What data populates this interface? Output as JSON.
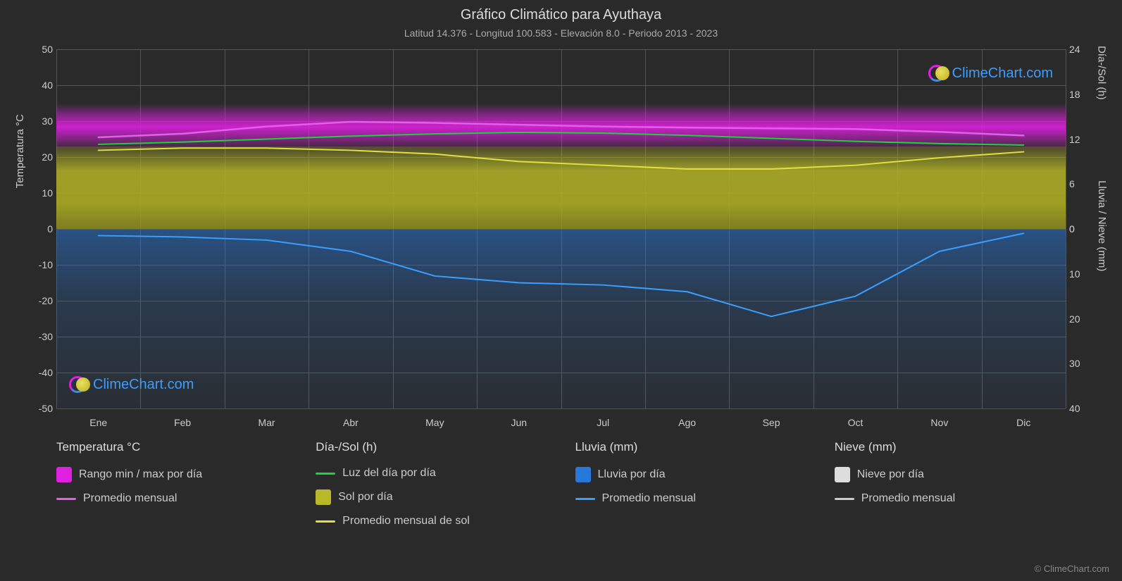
{
  "title": "Gráfico Climático para Ayuthaya",
  "subtitle": "Latitud 14.376 - Longitud 100.583 - Elevación 8.0 - Periodo 2013 - 2023",
  "logo_text": "ClimeChart.com",
  "copyright": "© ClimeChart.com",
  "axes": {
    "left_label": "Temperatura °C",
    "right_top_label": "Día-/Sol (h)",
    "right_bot_label": "Lluvia / Nieve (mm)",
    "y_left": {
      "min": -50,
      "max": 50,
      "step": 10,
      "ticks": [
        50,
        40,
        30,
        20,
        10,
        0,
        -10,
        -20,
        -30,
        -40,
        -50
      ]
    },
    "y_right_top": {
      "min": 0,
      "max": 24,
      "step": 6,
      "ticks": [
        24,
        18,
        12,
        6,
        0
      ]
    },
    "y_right_bot": {
      "min": 0,
      "max": 40,
      "step": 10,
      "ticks": [
        0,
        10,
        20,
        30,
        40
      ]
    },
    "months": [
      "Ene",
      "Feb",
      "Mar",
      "Abr",
      "May",
      "Jun",
      "Jul",
      "Ago",
      "Sep",
      "Oct",
      "Nov",
      "Dic"
    ]
  },
  "colors": {
    "background": "#2a2a2a",
    "grid": "#555555",
    "text": "#cccccc",
    "temp_range": "#e020e0",
    "temp_avg": "#e060e8",
    "daylight": "#20d040",
    "sun_band": "#b8b828",
    "sun_avg": "#e0e040",
    "rain_band": "#2878dc",
    "rain_avg": "#3a9eff",
    "snow_band": "#dddddd",
    "snow_avg": "#cccccc",
    "logo_blue": "#3a9eff"
  },
  "series": {
    "temp_avg_c": [
      25.5,
      26.5,
      28.5,
      29.8,
      29.5,
      29.0,
      28.5,
      28.2,
      28.0,
      27.8,
      27.0,
      26.0
    ],
    "temp_band_top_c": 35,
    "temp_band_bot_c": 22,
    "daylight_h": [
      11.3,
      11.6,
      12.0,
      12.4,
      12.7,
      12.9,
      12.8,
      12.5,
      12.1,
      11.7,
      11.4,
      11.2
    ],
    "sun_avg_h": [
      10.5,
      10.8,
      10.8,
      10.5,
      10.0,
      9.0,
      8.5,
      8.0,
      8.0,
      8.5,
      9.5,
      10.3
    ],
    "sun_band_top_h": 11,
    "sun_band_bot_h": 0,
    "rain_avg_mm": [
      1.5,
      1.8,
      2.5,
      5.0,
      10.5,
      12.0,
      12.5,
      14.0,
      19.5,
      15.0,
      5.0,
      1.0
    ],
    "rain_band_depth_mm": 40
  },
  "legend": {
    "cols": [
      {
        "title": "Temperatura °C",
        "items": [
          {
            "kind": "swatch",
            "color": "#e020e0",
            "label": "Rango min / max por día"
          },
          {
            "kind": "line",
            "color": "#e060e8",
            "label": "Promedio mensual"
          }
        ]
      },
      {
        "title": "Día-/Sol (h)",
        "items": [
          {
            "kind": "line",
            "color": "#20d040",
            "label": "Luz del día por día"
          },
          {
            "kind": "swatch",
            "color": "#b8b828",
            "label": "Sol por día"
          },
          {
            "kind": "line",
            "color": "#e0e040",
            "label": "Promedio mensual de sol"
          }
        ]
      },
      {
        "title": "Lluvia (mm)",
        "items": [
          {
            "kind": "swatch",
            "color": "#2878dc",
            "label": "Lluvia por día"
          },
          {
            "kind": "line",
            "color": "#3a9eff",
            "label": "Promedio mensual"
          }
        ]
      },
      {
        "title": "Nieve (mm)",
        "items": [
          {
            "kind": "swatch",
            "color": "#dddddd",
            "label": "Nieve por día"
          },
          {
            "kind": "line",
            "color": "#cccccc",
            "label": "Promedio mensual"
          }
        ]
      }
    ]
  }
}
